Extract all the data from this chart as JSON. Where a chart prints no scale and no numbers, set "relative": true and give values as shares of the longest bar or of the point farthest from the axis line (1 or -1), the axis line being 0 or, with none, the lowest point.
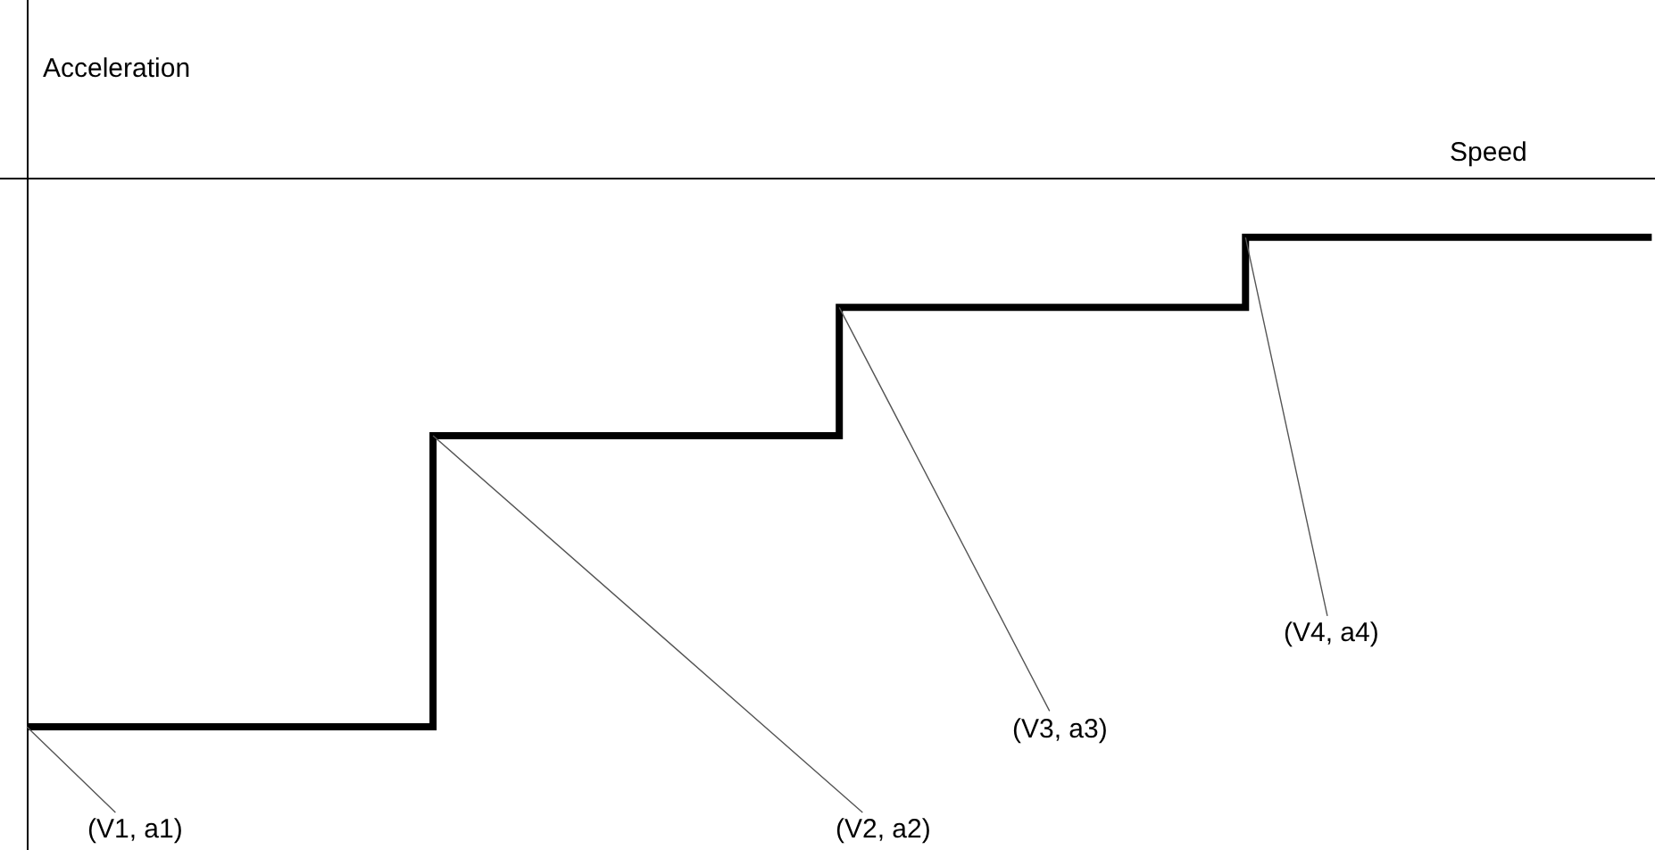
{
  "chart_data": {
    "type": "step",
    "relative": true,
    "xlabel": "Speed",
    "ylabel": "Acceleration",
    "categories": [
      null,
      null,
      null,
      null,
      null
    ],
    "series": [
      {
        "color": "#000000",
        "values": [
          -1,
          -0.469,
          -0.235,
          -0.107,
          -0.107
        ]
      }
    ],
    "annotations": [
      "(V1, a1)",
      "(V2, a2)",
      "(V3, a3)",
      "(V4, a4)"
    ],
    "marker": "none",
    "line_style": "solid"
  }
}
